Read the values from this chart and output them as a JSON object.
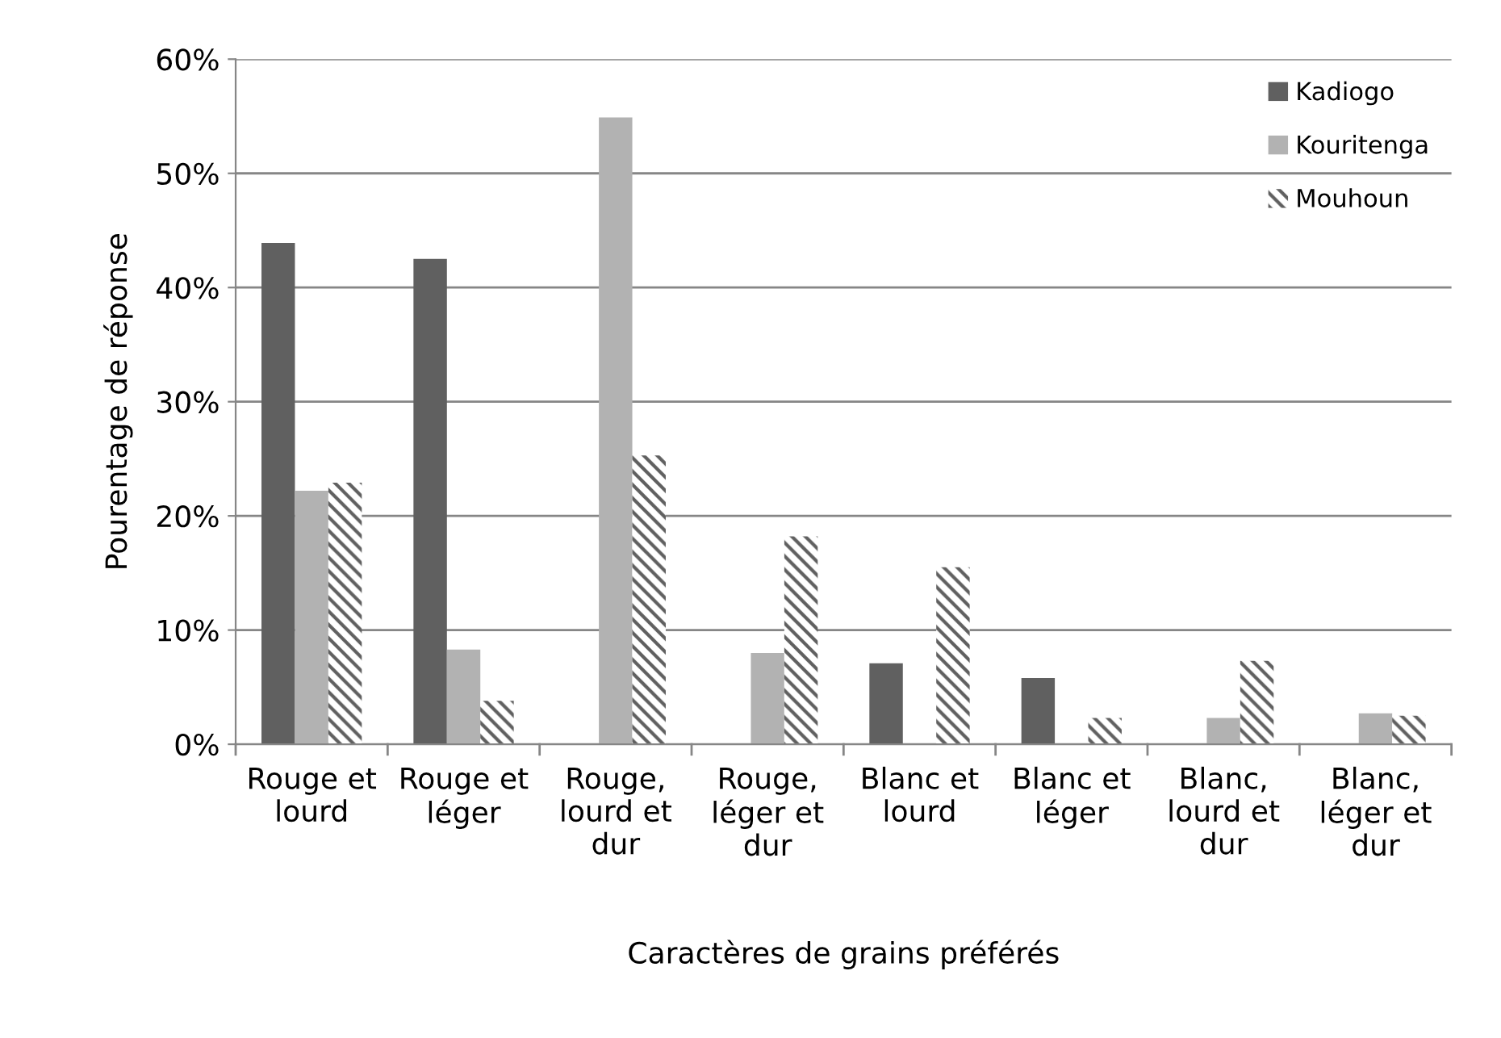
{
  "chart_data": {
    "type": "bar",
    "xlabel": "Caractères de grains préférés",
    "ylabel": "Pourentage de réponse",
    "categories": [
      "Rouge et\nlourd",
      "Rouge et\nléger",
      "Rouge,\nlourd et\ndur",
      "Rouge,\nléger et\ndur",
      "Blanc et\nlourd",
      "Blanc et\nléger",
      "Blanc,\nlourd et\ndur",
      "Blanc,\nléger et\ndur"
    ],
    "series": [
      {
        "name": "Kadiogo",
        "color": "#606060",
        "values": [
          43.9,
          42.5,
          0,
          0,
          7.1,
          5.8,
          0,
          0
        ]
      },
      {
        "name": "Kouritenga",
        "color": "#b2b2b2",
        "values": [
          22.2,
          8.3,
          54.9,
          8.0,
          0,
          0,
          2.3,
          2.7
        ]
      },
      {
        "name": "Mouhoun",
        "color": "#606060",
        "values": [
          22.9,
          3.8,
          25.3,
          18.2,
          15.5,
          2.3,
          7.3,
          2.5
        ]
      }
    ],
    "ylim": [
      0,
      60
    ],
    "yticks": [
      {
        "value": 0,
        "label": "0%"
      },
      {
        "value": 10,
        "label": "10%"
      },
      {
        "value": 20,
        "label": "20%"
      },
      {
        "value": 30,
        "label": "30%"
      },
      {
        "value": 40,
        "label": "40%"
      },
      {
        "value": 50,
        "label": "50%"
      },
      {
        "value": 60,
        "label": "60%"
      }
    ],
    "grid": "y",
    "legend": "top right"
  }
}
